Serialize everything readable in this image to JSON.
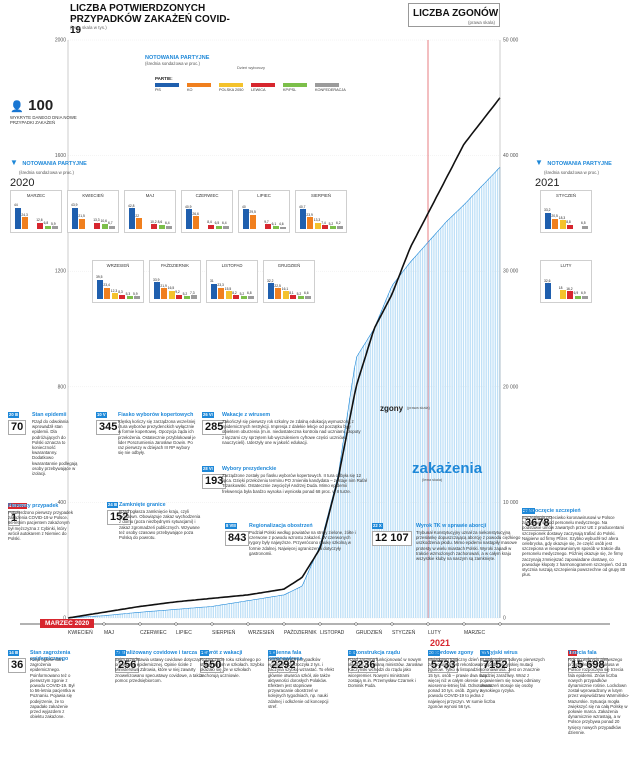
{
  "header": {
    "cases_title": "LICZBA POTWIERDZONYCH PRZYPADKÓW ZAKAŻEŃ COVID-19",
    "cases_scale": "(lewa skala w tys.)",
    "deaths_title": "LICZBA ZGONÓW",
    "deaths_scale": "(prawa skala)"
  },
  "legend": {
    "hundred_value": "100",
    "hundred_label": "WYKRYTE DANEGO DNIA NOWE PRZYPADKI ZAKAŻEŃ",
    "polls_title": "NOTOWANIA PARTYJNE",
    "polls_sub": "(średnia sondażowa w proc.)",
    "polls_note": "Dzień wyborczy",
    "parties_label": "PARTIE:",
    "parties": [
      {
        "name": "PiS",
        "color": "#1f5fae"
      },
      {
        "name": "KO",
        "color": "#f07f1e"
      },
      {
        "name": "POLSKA 2050",
        "color": "#f4c22c"
      },
      {
        "name": "LEWICA",
        "color": "#d7262e"
      },
      {
        "name": "KP/PSL",
        "color": "#7cbf4a"
      },
      {
        "name": "KONFEDERACJA",
        "color": "#9b9b9b"
      }
    ]
  },
  "polls_2020": {
    "title": "NOTOWANIA PARTYJNE",
    "sub": "(średnia sondażowa w proc.)",
    "year": "2020",
    "panels": [
      {
        "month": "MARZEC",
        "values": [
          "44",
          "24,3",
          "",
          "12,6",
          "6,8",
          "5,9"
        ]
      },
      {
        "month": "KWIECIEŃ",
        "values": [
          "43,9",
          "21,5",
          "",
          "13,3",
          "10,6",
          "6,7"
        ]
      },
      {
        "month": "MAJ",
        "values": [
          "42,8",
          "22",
          "",
          "10,2",
          "8,6",
          "6,4"
        ]
      },
      {
        "month": "CZERWIEC",
        "values": [
          "40,9",
          "26,6",
          "",
          "8,4",
          "6,5",
          "6,4"
        ]
      },
      {
        "month": "LIPIEC",
        "values": [
          "40",
          "29,5",
          "",
          "9,7",
          "6,1",
          "4,6"
        ]
      },
      {
        "month": "SIERPIEŃ",
        "values": [
          "40,7",
          "23,9",
          "13,3",
          "7,4",
          "5,2",
          "6,2"
        ]
      },
      {
        "month": "WRZESIEŃ",
        "values": [
          "39,5",
          "23,4",
          "12,3",
          "8,3",
          "5,3",
          "5,9"
        ]
      },
      {
        "month": "PAŹDZIERNIK",
        "values": [
          "33,9",
          "21,9",
          "16,5",
          "9,2",
          "5,2",
          "7,3"
        ]
      },
      {
        "month": "LISTOPAD",
        "values": [
          "31",
          "23,3",
          "15,5",
          "8,2",
          "5,2",
          "6,8"
        ]
      },
      {
        "month": "GRUDZIEŃ",
        "values": [
          "32,2",
          "22,5",
          "16,1",
          "8,1",
          "5,2",
          "6,6"
        ]
      }
    ]
  },
  "polls_2021": {
    "title": "NOTOWANIA PARTYJNE",
    "sub": "(średnia sondażowa w proc.)",
    "year": "2021",
    "panels": [
      {
        "month": "STYCZEŃ",
        "values": [
          "33,2",
          "20,5",
          "18,3",
          "8,8",
          "",
          "6,5"
        ]
      },
      {
        "month": "LUTY",
        "values": [
          "32,6",
          "",
          "18",
          "16,2",
          "6,9",
          "6,9"
        ]
      }
    ]
  },
  "chart_data": {
    "type": "area",
    "title": "LICZBA POTWIERDZONYCH PRZYPADKÓW ZAKAŻEŃ COVID-19",
    "x_labels": [
      "MARZEC 2020",
      "KWIECIEŃ",
      "MAJ",
      "CZERWIEC",
      "LIPIEC",
      "SIERPIEŃ",
      "WRZESIEŃ",
      "PAŹDZIERNIK",
      "LISTOPAD",
      "GRUDZIEŃ",
      "STYCZEŃ 2021",
      "LUTY",
      "MARZEC"
    ],
    "left_axis": {
      "label": "(lewa skala w tys.)",
      "ticks": [
        0,
        400,
        800,
        1200,
        1600,
        2000
      ],
      "ylim": [
        0,
        2000
      ]
    },
    "right_axis": {
      "label": "(prawa skala)",
      "ticks": [
        0,
        10000,
        20000,
        30000,
        40000,
        50000
      ],
      "ylim": [
        0,
        50000
      ]
    },
    "series": [
      {
        "name": "zakażenia",
        "note": "(lewa skala)",
        "unit": "tys.",
        "x": [
          0,
          1,
          2,
          3,
          4,
          5,
          6,
          6.5,
          7,
          7.5,
          8,
          8.5,
          9,
          9.5,
          10,
          10.5,
          11,
          12
        ],
        "values": [
          0,
          8,
          20,
          30,
          40,
          60,
          80,
          110,
          250,
          490,
          900,
          1000,
          1150,
          1230,
          1300,
          1370,
          1430,
          1560
        ]
      },
      {
        "name": "zgony",
        "note": "(prawa skala)",
        "x": [
          0,
          1,
          2,
          3,
          4,
          5,
          6,
          6.5,
          7,
          7.5,
          8,
          8.5,
          9,
          9.5,
          10,
          10.5,
          11,
          12
        ],
        "values": [
          0,
          500,
          1000,
          1400,
          1700,
          2000,
          2500,
          3500,
          6000,
          12000,
          20000,
          25000,
          28000,
          32000,
          35000,
          38000,
          41000,
          45000
        ]
      }
    ]
  },
  "labels": {
    "cases_label": "zakażenia",
    "cases_note": "(lewa skala)",
    "deaths_label": "zgony",
    "deaths_note": "(prawa skala)",
    "month_2020": "MARZEC 2020",
    "year_2021": "2021"
  },
  "events_top": [
    {
      "date": "20 III",
      "num": "70",
      "title": "Stan epidemii",
      "text": "Rząd do odwołania wprowadził stan epidemii. Dla podróżujących do Polski oznacza to konieczność kwarantanny. Dodatkowo kwarantannie podlegają osoby przebywające w izolacji."
    },
    {
      "date": "10 V",
      "num": "345",
      "title": "Fiasko wyborów kopertowych",
      "text": "Klęską kończy się zarządzona wcześniej i tura wyborów prezydenckich wyłącznie w formie kopertowej. Opozycja żąda ich przełożenia. Ostatecznie przyblokował je lider Porozumienia Jarosław Gowin. Po raz pierwszy w dziejach III RP wybory się nie odbyły."
    },
    {
      "date": "26 VI",
      "num": "285",
      "title": "Wakacje z wirusem",
      "text": "Zakończył się pierwszy rok szkolny ze zdalną edukacją wymuszoną z epidemicznych restrykcji. Impresja z dalekie lekcje od początku były obiektem oburzenia (m.in. niedostateczna kontrola nad uczniami, kłopoty z łączami czy sprzętem lub wyczuleniem cyfrowe części uczniów i nauczycieli). Uderzyły one w jakość edukacji."
    },
    {
      "date": "28 VI",
      "num": "193",
      "title": "Wybory prezydenckie",
      "text": "Zarządzone zostały po fiasku wyborów kopertowych. II tura odbyła się 12 lipca. Dzięki przełożeniu terminu PO zmieniła kandydata – zostaje nim Rafał Trzaskowski. Ostatecznie zwyciężył Andrzej Duda. Mimo epidemii frekwencja była bardzo wysoka i wyniosła ponad 68 proc. w II turze."
    },
    {
      "date": "24 III",
      "num": "152",
      "title": "Zamknięte granice",
      "text": "Rząd ogłasza zamknięcie kraju, czyli lockdown. Obowiązuje zakaz wychodzenia z domu (poza niezbędnymi sytuacjami) i zakaz zgromadzeń publicznych. Wzywane też osoby czasowo przebywające poza Polską do powrotu."
    },
    {
      "date": "4 III 2020",
      "num": "1",
      "title": "Pierwszy przypadek",
      "text": "Potwierdzono pierwszy przypadek zakażenia COVID-19 w Polsce. 66-letnim pacjentem zakażonym był mężczyzna z Cybinki, który wrócił autokarem z Niemiec do Polski."
    },
    {
      "date": "8 VIII",
      "num": "843",
      "title": "Regionalizacja obostrzeń",
      "text": "Podział Polski według powiatów na strefy zielone, żółte i czerwone z powodu wzrostu zakażeń. W czerwonych rygory były najwyższe. Przywrócono naukę szkolną w formie zdalnej. Najwięcej ograniczenia dotyczyły gastronomii."
    },
    {
      "date": "22 X",
      "num": "12 107",
      "title": "Wyrok TK w sprawie aborcji",
      "text": "Trybunał Konstytucyjny uznał za niekonstytucyjną przesłankę dopuszczającą aborcję z powodu ciężkiego uszkodzenia płodu. Mimo epidemii nastąpiły masowe protesty w wielu miastach Polski. Wyroki zapadł w trakcie wzmożonych zachorowań, a w całym kraju wszystkie kluby na naszym są zamknięte."
    },
    {
      "date": "27 XII",
      "num": "3678",
      "title": "Rozpoczęcie szczepień",
      "text": "Szczepienia przeciwko koronawirusowi w Polsce zaczynają się od personelu medycznego. Na podstawie umów zawartych przez UE z producentami szczepionek dostawy zaczynają trafiać do Polski. Najpierw od firmy Pfizer. Szybko wybuchł też afera celebrycka, gdy okazuje się, że część osób jest szczepiona w nieuprawnionym sposób w trakcie dla personelu medycznego. Później okazuje się, że firmy zaczynają zmniejszać zapowiadane dostawy, co powoduje kłopoty z harmonogramem szczepień. Od 15 stycznia ruszają szczepienia powszechne od grupy 80 plus."
    }
  ],
  "events_bottom": [
    {
      "date": "14 III",
      "num": "36",
      "title": "Stan zagrożenia epidemicznego",
      "text": "Rząd ogłosił stan zagrożenia epidemicznego. Poinformowano też o pierwszym zgonie z powodu COVID-19. Był to 56-letnia pacjentka w Poznaniu. Pojawia się podejrzenie, że to zapadało zakażenie przed wyjazdem z obiektu zakażone."
    },
    {
      "date": "31 III",
      "num": "256",
      "title": "Sparaliżowany covidowe i tarcza",
      "text": "Sejm przedstawia ustawy covidowe dotyczące organizacji epidemicznej. Opinie ścisłe z Ministerstwa Zdrowia, które w niej zawarty znowelizowano specustawy covidowe, a także pomoc przedsiębiorcom."
    },
    {
      "date": "1 IX",
      "num": "550",
      "title": "Powrót z wakacji",
      "text": "Rozpoczęcie roku szkolnego po stacjonarnym w szkołach. Szybko okazało się, że w szkołach zachorują uczniowie."
    },
    {
      "date": "2 X",
      "num": "2292",
      "title": "Jesienna fala koronawirusa",
      "text": "Liczba nowych przypadków epidemii przekroczyła 2 tys. i zaczyna szybko wzrastać. To efekt głównie otwarcia szkół, ale także aktywności dorosłych Polaków. Efektem jest stopniowe przywracanie obostrzeń w kolejnych tygodniach, np. nauki zdalnej i odłożenie od koncepcji stref."
    },
    {
      "date": "6 X",
      "num": "2236",
      "title": "Rekonstrukcja rządu",
      "text": "Rząd zaczyna funkcjonować w nowym składzie ze zmianą ministrów. Jarosław Kaczyński wchodzi do rządu jako wicepremier. Nowymi ministrami zostają m.in. Przemysław Czarnek i Dominik Puda."
    },
    {
      "date": "30 XI",
      "num": "5733",
      "title": "Rekordowe zgony",
      "text": "Wyjątkowo tragiczny dzień zachorowań jest rekordowa liczba zgonów. Tylko w listopadzie umiera 15 tys. osób – prawie dwa razy więcej niż w całym okresie wiosenno-letniej fali. Odnotowano ponad 10 tys. osób. Zgony z powodu COVID-19 to jedna z najwięcej przyczyn. W sumie liczba zgonów wynosi 56 tys."
    },
    {
      "date": "16 II",
      "num": "7152",
      "title": "Brytyjski wirus",
      "text": "W Małopolsce odkryto pierwszych przypadki brytyjskiej mutacji koronawirusa. Jest on znacznie bardziej zaraźliwy. Wraz z pojawieniem się nowej odmiany obostrzeń stosuje się osoby wysokiego ryzyka."
    },
    {
      "date": "3 III",
      "num": "15 698",
      "title": "Trzecia fala",
      "text": "Rok po wykryciu pierwszego przypadku koronawirusa w Polsce rozpoczęła się trzecia fala epidemii. Znów liczba nowych przypadków dynamicznie rośnie. Lockdown został wprowadzony w lutym przez województwo Warmińsko-Mazurskie. Sytuacja mogła zwiększyć się na całą Polskę w połowie marca. Zakażenia dynamicznie wzrastają, a w Polsce przybywa ponad 20 tysięcy nowych przypadków dziennie."
    }
  ],
  "months": [
    "KWIECIEŃ",
    "MAJ",
    "CZERWIEC",
    "LIPIEC",
    "SIERPIEŃ",
    "WRZESIEŃ",
    "PAŹDZIERNIK",
    "LISTOPAD",
    "GRUDZIEŃ",
    "STYCZEŃ",
    "LUTY",
    "MARZEC"
  ]
}
